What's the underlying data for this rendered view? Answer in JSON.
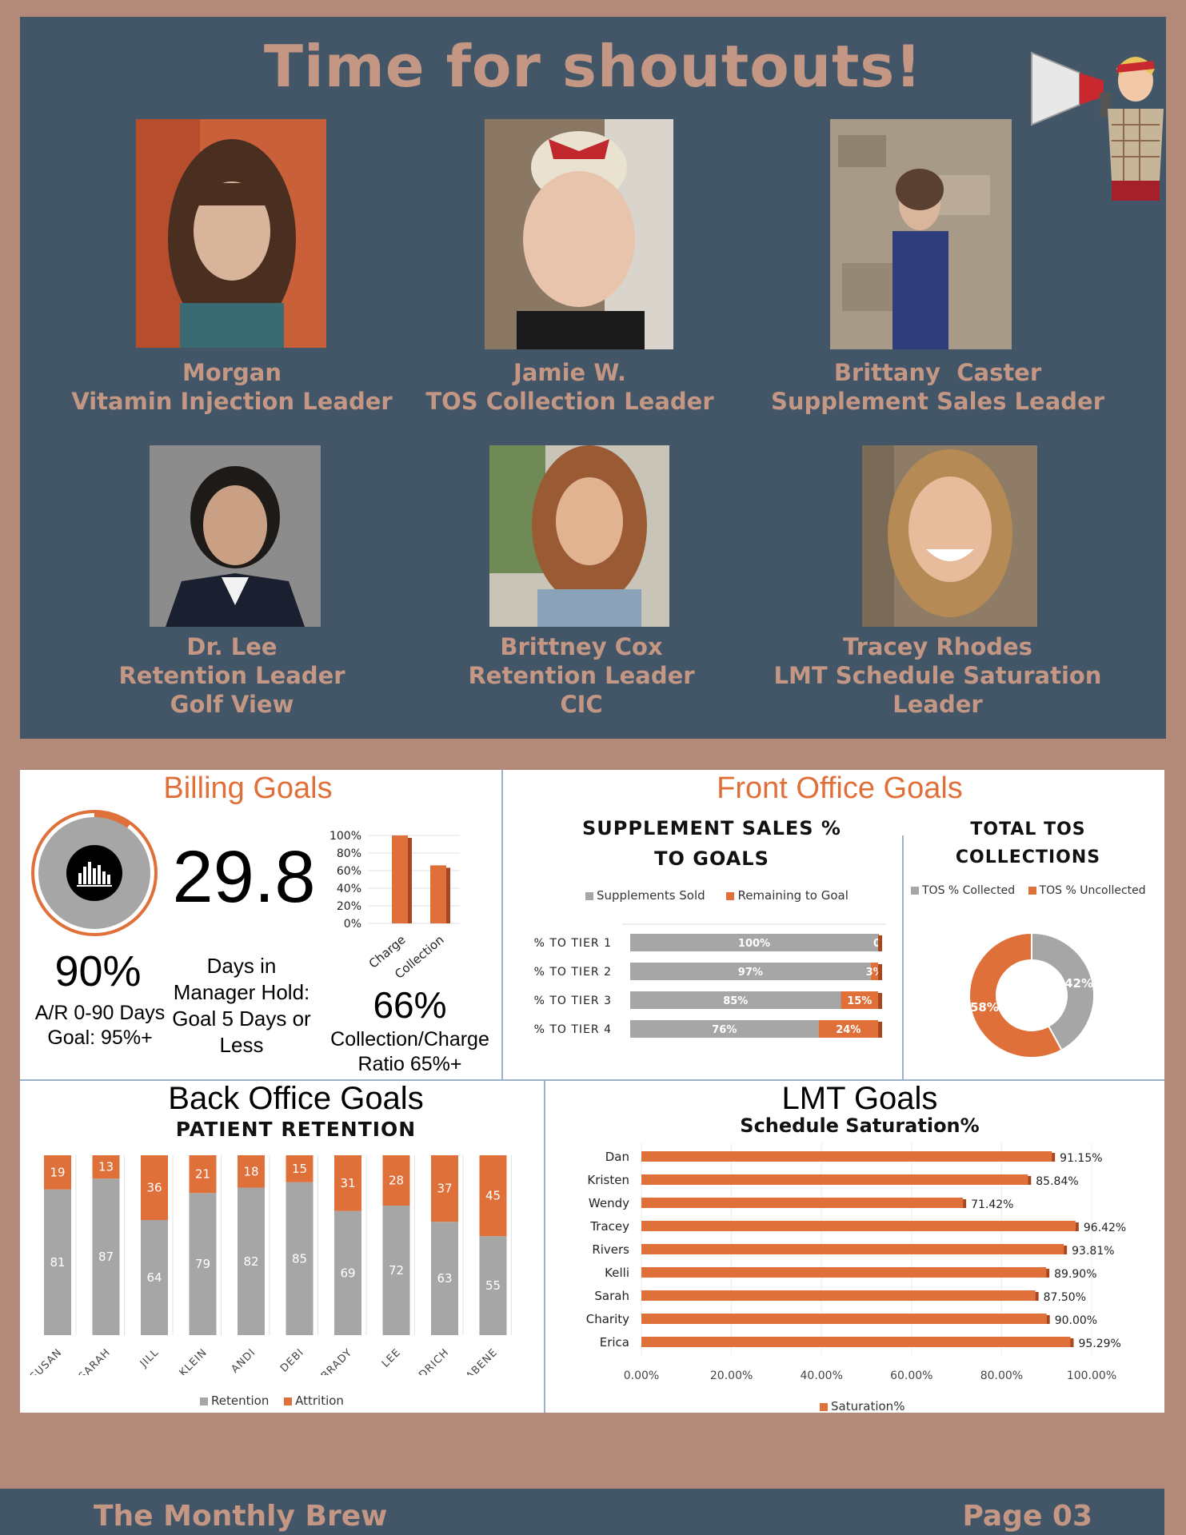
{
  "newsletter": {
    "title": "Time for shoutouts!",
    "shoutouts": [
      {
        "name": "Morgan",
        "role": "Vitamin Injection Leader",
        "extra": ""
      },
      {
        "name": "Jamie W.",
        "role": "TOS Collection Leader",
        "extra": ""
      },
      {
        "name": "Brittany  Caster",
        "role": "Supplement Sales Leader",
        "extra": ""
      },
      {
        "name": "Dr. Lee",
        "role": "Retention Leader",
        "extra": "Golf View"
      },
      {
        "name": "Brittney Cox",
        "role": "Retention Leader",
        "extra": "CIC"
      },
      {
        "name": "Tracey Rhodes",
        "role": "LMT Schedule Saturation",
        "extra": "Leader"
      }
    ]
  },
  "billing": {
    "title": "Billing Goals",
    "ar_percent": "90%",
    "ar_label_1": "A/R 0-90 Days",
    "ar_label_2": "Goal: 95%+",
    "days_value": "29.8",
    "days_label_1": "Days in",
    "days_label_2": "Manager Hold:",
    "days_label_3": "Goal 5 Days or",
    "days_label_4": "Less",
    "ratio_value": "66%",
    "ratio_label_1": "Collection/Charge",
    "ratio_label_2": "Ratio 65%+"
  },
  "front_office": {
    "title": "Front Office Goals",
    "supplement_title_1": "SUPPLEMENT SALES %",
    "supplement_title_2": "TO GOALS",
    "legend_sold": "Supplements Sold",
    "legend_remaining": "Remaining to Goal",
    "tos_title_1": "TOTAL TOS",
    "tos_title_2": "COLLECTIONS",
    "legend_collected": "TOS % Collected",
    "legend_uncollected": "TOS % Uncollected"
  },
  "back_office": {
    "title": "Back Office Goals",
    "subtitle": "PATIENT RETENTION",
    "legend_retention": "Retention",
    "legend_attrition": "Attrition"
  },
  "lmt": {
    "title": "LMT Goals",
    "subtitle": "Schedule Saturation%",
    "legend": "Saturation%"
  },
  "footer": {
    "left": "The Monthly Brew",
    "right": "Page 03"
  },
  "colors": {
    "panel": "#435667",
    "background": "#b38a7a",
    "accent_text": "#c49684",
    "orange": "#e0703a",
    "gray": "#a6a6a6"
  },
  "chart_data": [
    {
      "type": "pie",
      "title": "",
      "values": [
        90,
        10
      ],
      "labels": [
        "",
        ""
      ]
    },
    {
      "type": "bar",
      "title": "",
      "categories": [
        "Charge",
        "Collection"
      ],
      "values": [
        100,
        66
      ],
      "ylim": [
        0,
        100
      ],
      "yticks": [
        "0%",
        "20%",
        "40%",
        "60%",
        "80%",
        "100%"
      ]
    },
    {
      "type": "bar",
      "title": "SUPPLEMENT SALES % TO GOALS",
      "orientation": "horizontal",
      "stacked": true,
      "categories": [
        "% TO TIER 1",
        "% TO TIER 2",
        "% TO TIER 3",
        "% TO TIER 4"
      ],
      "series": [
        {
          "name": "Supplements Sold",
          "values": [
            100,
            97,
            85,
            76
          ],
          "labels": [
            "100%",
            "97%",
            "85%",
            "76%"
          ]
        },
        {
          "name": "Remaining to Goal",
          "values": [
            0,
            3,
            15,
            24
          ],
          "labels": [
            "0%",
            "3%",
            "15%",
            "24%"
          ]
        }
      ]
    },
    {
      "type": "pie",
      "title": "TOTAL TOS COLLECTIONS",
      "donut": true,
      "labels": [
        "TOS % Collected",
        "TOS % Uncollected"
      ],
      "values": [
        42,
        58
      ],
      "value_labels": [
        "42%",
        "58%"
      ]
    },
    {
      "type": "bar",
      "title": "PATIENT RETENTION",
      "stacked": true,
      "categories": [
        "SUSAN",
        "SARAH",
        "JILL",
        "KLEIN",
        "ANDI",
        "DEBI",
        "BRADY",
        "LEE",
        "GOODRICH",
        "TORNABENE"
      ],
      "series": [
        {
          "name": "Retention",
          "values": [
            81,
            87,
            64,
            79,
            82,
            85,
            69,
            72,
            63,
            55
          ]
        },
        {
          "name": "Attrition",
          "values": [
            19,
            13,
            36,
            21,
            18,
            15,
            31,
            28,
            37,
            45
          ]
        }
      ]
    },
    {
      "type": "bar",
      "title": "Schedule Saturation%",
      "orientation": "horizontal",
      "categories": [
        "Dan",
        "Kristen",
        "Wendy",
        "Tracey",
        "Rivers",
        "Kelli",
        "Sarah",
        "Charity",
        "Erica"
      ],
      "series": [
        {
          "name": "Saturation%",
          "values": [
            91.15,
            85.84,
            71.42,
            96.42,
            93.81,
            89.9,
            87.5,
            90.0,
            95.29
          ],
          "labels": [
            "91.15%",
            "85.84%",
            "71.42%",
            "96.42%",
            "93.81%",
            "89.90%",
            "87.50%",
            "90.00%",
            "95.29%"
          ]
        }
      ],
      "xlim": [
        0,
        100
      ],
      "xticks": [
        "0.00%",
        "20.00%",
        "40.00%",
        "60.00%",
        "80.00%",
        "100.00%"
      ]
    }
  ]
}
